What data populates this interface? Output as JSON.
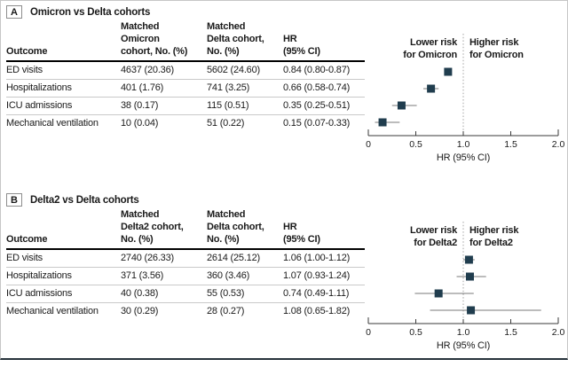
{
  "colors": {
    "marker": "#203d4e",
    "whisker": "#787878",
    "ref_line": "#a3a3a3",
    "axis": "#3a3a3a",
    "text": "#1a1a1a",
    "header_rule": "#000000",
    "row_rule": "#c9c9c9",
    "bottom_rule": "#27333b"
  },
  "chart_data": [
    {
      "type": "forest",
      "panel_label": "A",
      "title": "Omicron vs Delta cohorts",
      "columns": [
        "Outcome",
        "Matched\nOmicron\ncohort, No. (%)",
        "Matched\nDelta cohort,\nNo. (%)",
        "HR\n(95% CI)"
      ],
      "rows": [
        {
          "outcome": "ED visits",
          "cohort1": "4637 (20.36)",
          "cohort2": "5602 (24.60)",
          "hr_text": "0.84 (0.80-0.87)",
          "hr": 0.84,
          "ci": [
            0.8,
            0.87
          ]
        },
        {
          "outcome": "Hospitalizations",
          "cohort1": "401 (1.76)",
          "cohort2": "741 (3.25)",
          "hr_text": "0.66 (0.58-0.74)",
          "hr": 0.66,
          "ci": [
            0.58,
            0.74
          ]
        },
        {
          "outcome": "ICU admissions",
          "cohort1": "38 (0.17)",
          "cohort2": "115 (0.51)",
          "hr_text": "0.35 (0.25-0.51)",
          "hr": 0.35,
          "ci": [
            0.25,
            0.51
          ]
        },
        {
          "outcome": "Mechanical ventilation",
          "cohort1": "10 (0.04)",
          "cohort2": "51 (0.22)",
          "hr_text": "0.15 (0.07-0.33)",
          "hr": 0.15,
          "ci": [
            0.07,
            0.33
          ]
        }
      ],
      "lower_label": "Lower risk\nfor Omicron",
      "higher_label": "Higher risk\nfor Omicron",
      "xlabel": "HR (95% CI)",
      "xlim": [
        0,
        2
      ],
      "xticks": [
        0,
        0.5,
        1.0,
        1.5,
        2.0
      ],
      "xtick_labels": [
        "0",
        "0.5",
        "1.0",
        "1.5",
        "2.0"
      ],
      "ref_line": 1.0
    },
    {
      "type": "forest",
      "panel_label": "B",
      "title": "Delta2 vs Delta cohorts",
      "columns": [
        "Outcome",
        "Matched\nDelta2 cohort,\nNo. (%)",
        "Matched\nDelta cohort,\nNo. (%)",
        "HR\n(95% CI)"
      ],
      "rows": [
        {
          "outcome": "ED visits",
          "cohort1": "2740 (26.33)",
          "cohort2": "2614 (25.12)",
          "hr_text": "1.06 (1.00-1.12)",
          "hr": 1.06,
          "ci": [
            1.0,
            1.12
          ]
        },
        {
          "outcome": "Hospitalizations",
          "cohort1": "371 (3.56)",
          "cohort2": "360 (3.46)",
          "hr_text": "1.07 (0.93-1.24)",
          "hr": 1.07,
          "ci": [
            0.93,
            1.24
          ]
        },
        {
          "outcome": "ICU admissions",
          "cohort1": "40 (0.38)",
          "cohort2": "55 (0.53)",
          "hr_text": "0.74 (0.49-1.11)",
          "hr": 0.74,
          "ci": [
            0.49,
            1.11
          ]
        },
        {
          "outcome": "Mechanical ventilation",
          "cohort1": "30 (0.29)",
          "cohort2": "28 (0.27)",
          "hr_text": "1.08 (0.65-1.82)",
          "hr": 1.08,
          "ci": [
            0.65,
            1.82
          ]
        }
      ],
      "lower_label": "Lower risk\nfor Delta2",
      "higher_label": "Higher risk\nfor Delta2",
      "xlabel": "HR (95% CI)",
      "xlim": [
        0,
        2
      ],
      "xticks": [
        0,
        0.5,
        1.0,
        1.5,
        2.0
      ],
      "xtick_labels": [
        "0",
        "0.5",
        "1.0",
        "1.5",
        "2.0"
      ],
      "ref_line": 1.0
    }
  ]
}
